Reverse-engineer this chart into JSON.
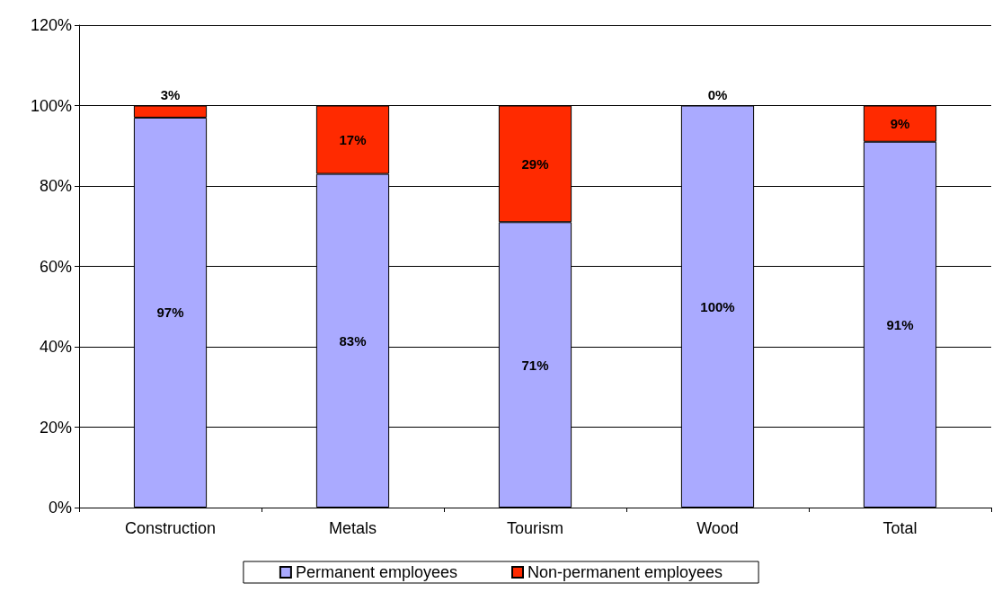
{
  "chart_data": {
    "type": "bar",
    "stacked": true,
    "categories": [
      "Construction",
      "Metals",
      "Tourism",
      "Wood",
      "Total"
    ],
    "series": [
      {
        "name": "Permanent employees",
        "color": "#aaaaff",
        "values": [
          97,
          83,
          71,
          100,
          91
        ],
        "value_labels": [
          "97%",
          "83%",
          "71%",
          "100%",
          "91%"
        ]
      },
      {
        "name": "Non-permanent employees",
        "color": "#ff2a00",
        "values": [
          3,
          17,
          29,
          0,
          9
        ],
        "value_labels": [
          "3%",
          "17%",
          "29%",
          "0%",
          "9%"
        ]
      }
    ],
    "ylim": [
      0,
      120
    ],
    "yticks": [
      {
        "value": 0,
        "label": "0%"
      },
      {
        "value": 20,
        "label": "20%"
      },
      {
        "value": 40,
        "label": "40%"
      },
      {
        "value": 60,
        "label": "60%"
      },
      {
        "value": 80,
        "label": "80%"
      },
      {
        "value": 100,
        "label": "100%"
      },
      {
        "value": 120,
        "label": "120%"
      }
    ],
    "grid": "y",
    "legend": "bottom"
  }
}
